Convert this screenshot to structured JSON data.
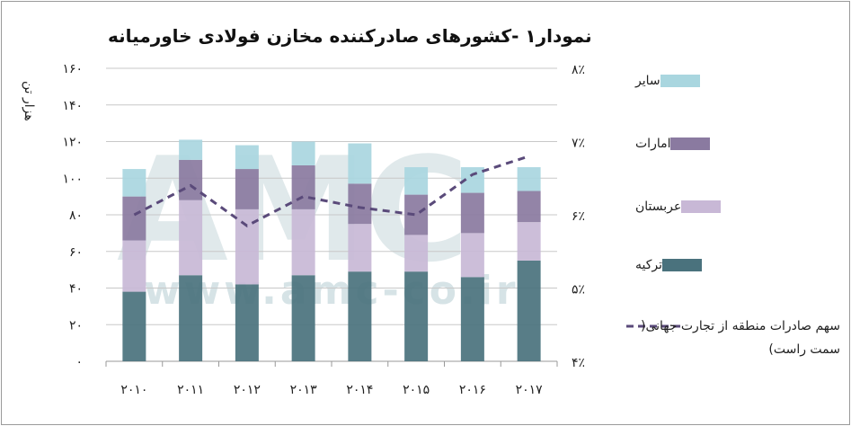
{
  "title": "نمودار۱ -کشورهای صادرکننده مخازن فولادی خاورمیانه",
  "watermark": {
    "logo": "AMC",
    "url": "www.amc-co.ir"
  },
  "chart_data": {
    "type": "bar",
    "stacked": true,
    "ylabel": "هزار تن",
    "ylim": [
      0,
      160
    ],
    "yticks": [
      "۰",
      "۲۰",
      "۴۰",
      "۶۰",
      "۸۰",
      "۱۰۰",
      "۱۲۰",
      "۱۴۰",
      "۱۶۰"
    ],
    "y2lim": [
      4,
      8
    ],
    "y2ticks": [
      "۴٪",
      "۵٪",
      "۶٪",
      "۷٪",
      "۸٪"
    ],
    "grid": true,
    "legend_position": "right",
    "categories": [
      "۲۰۱۰",
      "۲۰۱۱",
      "۲۰۱۲",
      "۲۰۱۳",
      "۲۰۱۴",
      "۲۰۱۵",
      "۲۰۱۶",
      "۲۰۱۷"
    ],
    "series": [
      {
        "name": "ترکیه",
        "color": "#4a727d",
        "values": [
          38,
          47,
          42,
          47,
          49,
          49,
          46,
          55
        ]
      },
      {
        "name": "عربستان",
        "color": "#c8b8d6",
        "values": [
          28,
          41,
          41,
          36,
          26,
          20,
          24,
          21
        ]
      },
      {
        "name": "امارات",
        "color": "#8a7aa0",
        "values": [
          24,
          22,
          22,
          24,
          22,
          22,
          22,
          17
        ]
      },
      {
        "name": "سایر",
        "color": "#a9d6df",
        "values": [
          15,
          11,
          13,
          13,
          22,
          15,
          14,
          13
        ]
      }
    ],
    "line": {
      "name": "سهم صادرات منطقه از تجارت جهانی( سمت راست)",
      "color": "#5a4a7a",
      "axis": "right",
      "values": [
        6.0,
        6.4,
        5.85,
        6.25,
        6.1,
        6.0,
        6.55,
        6.8
      ]
    }
  }
}
